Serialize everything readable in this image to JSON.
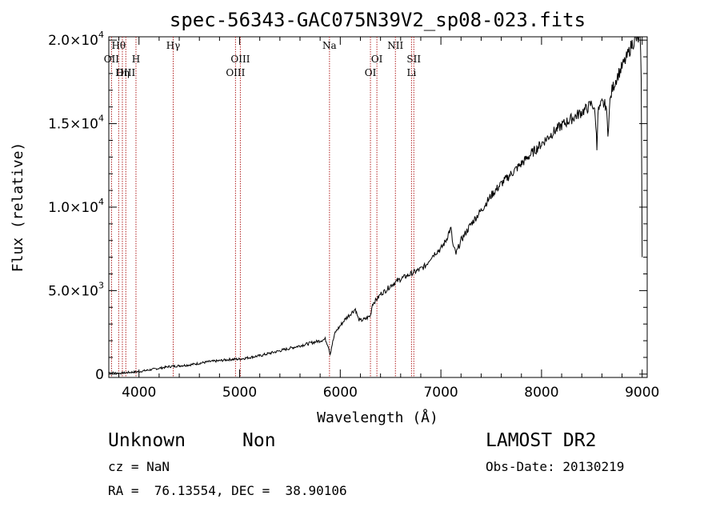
{
  "chart_data": {
    "type": "line",
    "title": "spec-56343-GAC075N39V2_sp08-023.fits",
    "xlabel": "Wavelength (Å)",
    "ylabel": "Flux (relative)",
    "xlim": [
      3700,
      9050
    ],
    "ylim": [
      -200,
      20200
    ],
    "x_ticks": [
      4000,
      5000,
      6000,
      7000,
      8000,
      9000
    ],
    "y_ticks": [
      {
        "value": 0,
        "base": "0",
        "exp": ""
      },
      {
        "value": 5000,
        "base": "5.0×10",
        "exp": "3"
      },
      {
        "value": 10000,
        "base": "1.0×10",
        "exp": "4"
      },
      {
        "value": 15000,
        "base": "1.5×10",
        "exp": "4"
      },
      {
        "value": 20000,
        "base": "2.0×10",
        "exp": "4"
      }
    ],
    "spectral_lines": [
      {
        "label": "Hθ",
        "x": 3798,
        "row": 0
      },
      {
        "label": "OII",
        "x": 3727,
        "row": 1
      },
      {
        "label": "H",
        "x": 3970,
        "row": 1
      },
      {
        "label": "OIII",
        "x": 3869,
        "row": 2
      },
      {
        "label": "Hη",
        "x": 3835,
        "row": 2
      },
      {
        "label": "Hγ",
        "x": 4340,
        "row": 0
      },
      {
        "label": "OIII",
        "x": 5007,
        "row": 1
      },
      {
        "label": "OIII",
        "x": 4959,
        "row": 2
      },
      {
        "label": "Na",
        "x": 5893,
        "row": 0
      },
      {
        "label": "OI",
        "x": 6364,
        "row": 1
      },
      {
        "label": "OI",
        "x": 6300,
        "row": 2
      },
      {
        "label": "NII",
        "x": 6548,
        "row": 0
      },
      {
        "label": "SII",
        "x": 6731,
        "row": 1
      },
      {
        "label": "Li",
        "x": 6708,
        "row": 2
      }
    ],
    "series": [
      {
        "x": [
          3700,
          3800,
          3900,
          4000,
          4100,
          4200,
          4300,
          4400,
          4500,
          4600,
          4700,
          4800,
          4900,
          5000,
          5100,
          5200,
          5300,
          5400,
          5500,
          5600,
          5700,
          5800,
          5850,
          5880,
          5900,
          5920,
          5950,
          6000,
          6050,
          6100,
          6150,
          6180,
          6200,
          6250,
          6300,
          6320,
          6350,
          6380,
          6400,
          6450,
          6500,
          6600,
          6700,
          6800,
          6850,
          6900,
          6950,
          7000,
          7050,
          7080,
          7100,
          7120,
          7150,
          7200,
          7300,
          7400,
          7500,
          7600,
          7700,
          7800,
          7900,
          8000,
          8100,
          8200,
          8300,
          8400,
          8450,
          8480,
          8500,
          8520,
          8540,
          8550,
          8560,
          8600,
          8640,
          8660,
          8680,
          8700,
          8750,
          8800,
          8850,
          8900,
          8950,
          8980,
          8990,
          9000
        ],
        "y": [
          100,
          50,
          100,
          150,
          250,
          350,
          450,
          500,
          550,
          650,
          750,
          800,
          880,
          900,
          1000,
          1100,
          1250,
          1400,
          1550,
          1700,
          1850,
          2000,
          2100,
          1700,
          1200,
          1800,
          2500,
          2900,
          3300,
          3600,
          3900,
          3300,
          3200,
          3300,
          3500,
          4200,
          4400,
          4600,
          4800,
          5000,
          5300,
          5700,
          6000,
          6300,
          6500,
          7000,
          7300,
          7500,
          8000,
          8500,
          8700,
          7700,
          7200,
          8000,
          9000,
          9800,
          10700,
          11400,
          12000,
          12600,
          13200,
          13800,
          14400,
          14900,
          15300,
          15700,
          15900,
          16100,
          16200,
          16000,
          15000,
          13500,
          15700,
          16200,
          16100,
          14500,
          16300,
          17000,
          17800,
          18400,
          19000,
          19800,
          20100,
          20000,
          18000,
          7000
        ]
      }
    ],
    "grid": false,
    "legend": "none"
  },
  "footer": {
    "object_class": "Unknown",
    "subclass": "Non",
    "survey": "LAMOST DR2",
    "cz": "cz = NaN",
    "obs_date": "Obs-Date: 20130219",
    "coords": "RA =  76.13554, DEC =  38.90106"
  }
}
